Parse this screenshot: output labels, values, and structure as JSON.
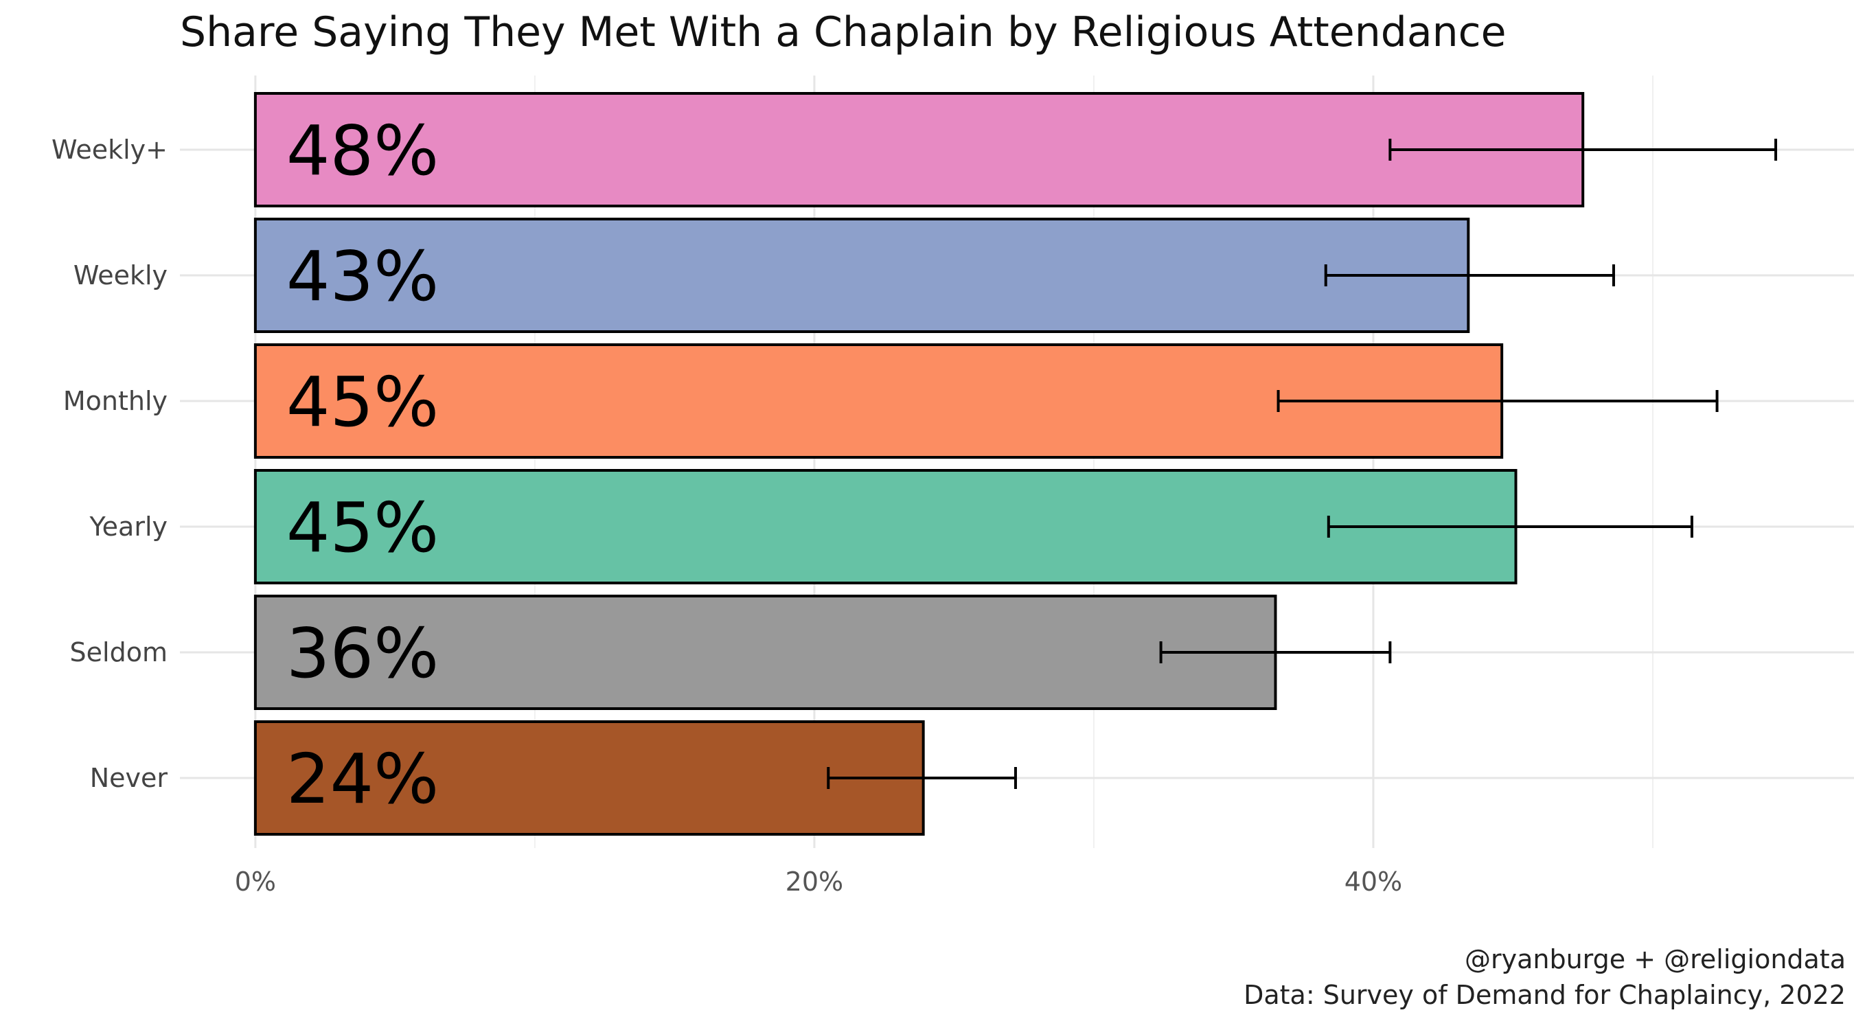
{
  "chart_data": {
    "type": "bar",
    "orientation": "horizontal",
    "title": "Share Saying They Met With a Chaplain by Religious Attendance",
    "xlabel": "",
    "ylabel": "",
    "categories": [
      "Weekly+",
      "Weekly",
      "Monthly",
      "Yearly",
      "Seldom",
      "Never"
    ],
    "values": [
      47.5,
      43.4,
      44.6,
      45.1,
      36.5,
      23.9
    ],
    "value_labels": [
      "48%",
      "43%",
      "45%",
      "45%",
      "36%",
      "24%"
    ],
    "error_low": [
      40.6,
      38.3,
      36.6,
      38.4,
      32.4,
      20.5
    ],
    "error_high": [
      54.4,
      48.6,
      52.3,
      51.4,
      40.6,
      27.2
    ],
    "colors": [
      "#E78AC3",
      "#8DA0CB",
      "#FC8D62",
      "#66C2A5",
      "#999999",
      "#A65628"
    ],
    "xlim": [
      -2.7,
      57.2
    ],
    "xticks": [
      0,
      20,
      40
    ],
    "xtick_labels": [
      "0%",
      "20%",
      "40%"
    ],
    "minor_xticks": [
      10,
      30,
      50
    ],
    "grid": true,
    "legend": "none",
    "caption_lines": [
      "@ryanburge + @religiondata",
      "Data: Survey of Demand for Chaplaincy, 2022"
    ]
  }
}
